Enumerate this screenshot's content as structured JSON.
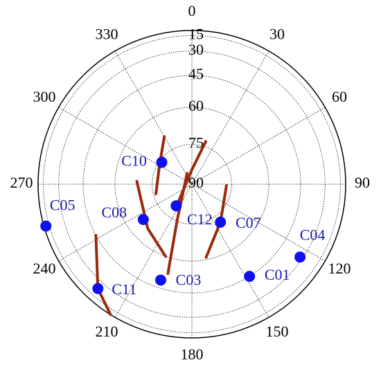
{
  "chart_data": {
    "type": "polar-skyplot",
    "azticks": [
      0,
      30,
      60,
      90,
      120,
      150,
      180,
      210,
      240,
      270,
      300,
      330
    ],
    "elticks": [
      15,
      30,
      45,
      60,
      75,
      90
    ],
    "point_color": "#1010ee",
    "label_color": "#1a1aa8",
    "track_color": "#9a2a0c",
    "tracks": [
      {
        "az": [
          330,
          299,
          255
        ],
        "el": [
          69,
          76,
          76
        ]
      },
      {
        "az": [
          18,
          0,
          218
        ],
        "el": [
          73,
          84.6,
          82
        ]
      },
      {
        "az": [
          336,
          202,
          195
        ],
        "el": [
          85.6,
          75,
          53
        ]
      },
      {
        "az": [
          273,
          225,
          200
        ],
        "el": [
          69,
          66,
          60
        ]
      },
      {
        "az": [
          92,
          143,
          169
        ],
        "el": [
          77,
          72,
          61
        ]
      },
      {
        "az": [
          242,
          222,
          212
        ],
        "el": [
          45,
          24,
          2
        ]
      }
    ],
    "satellites": [
      {
        "name": "C10",
        "az": 306,
        "el": 76
      },
      {
        "name": "C05",
        "az": 254,
        "el": 9
      },
      {
        "name": "C08",
        "az": 234,
        "el": 67
      },
      {
        "name": "C12",
        "az": 216,
        "el": 80
      },
      {
        "name": "C07",
        "az": 143,
        "el": 72
      },
      {
        "name": "C04",
        "az": 124,
        "el": 32
      },
      {
        "name": "C03",
        "az": 198,
        "el": 49
      },
      {
        "name": "C01",
        "az": 148,
        "el": 45
      },
      {
        "name": "C11",
        "az": 222,
        "el": 24
      }
    ]
  }
}
